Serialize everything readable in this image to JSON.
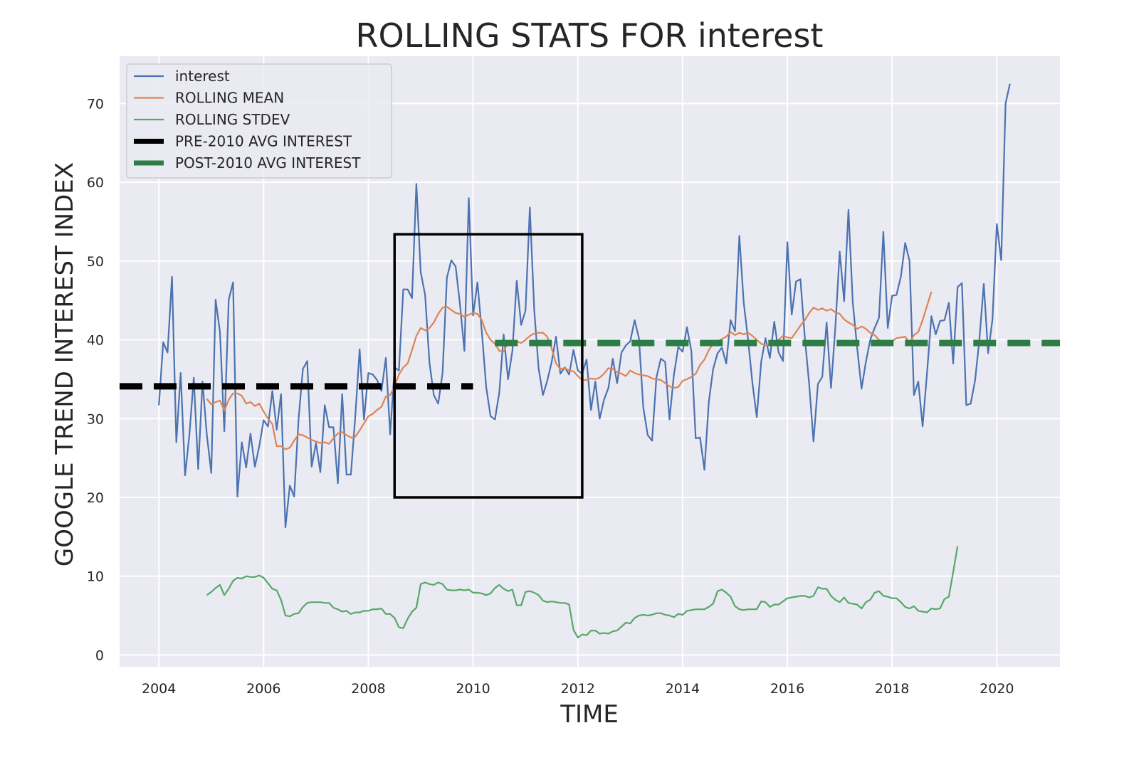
{
  "chart_data": {
    "type": "line",
    "title": "ROLLING STATS FOR interest",
    "xlabel": "TIME",
    "ylabel": "GOOGLE TREND INTEREST INDEX",
    "xlim": [
      "2003-04-01",
      "2021-03-15"
    ],
    "ylim": [
      -1.5,
      76
    ],
    "x_ticks": [
      "2004",
      "2006",
      "2008",
      "2010",
      "2012",
      "2014",
      "2016",
      "2018",
      "2020"
    ],
    "y_ticks": [
      "0",
      "10",
      "20",
      "30",
      "40",
      "50",
      "60",
      "70"
    ],
    "grid": true,
    "legend_position": "top-left",
    "colors": {
      "interest": "#4c72b0",
      "rolling_mean": "#dd8452",
      "rolling_stdev": "#55a868",
      "pre_2010_avg": "#000000",
      "post_2010_avg": "#2e7d46",
      "plot_background": "#eaeaf2",
      "grid": "#ffffff"
    },
    "series": [
      {
        "name": "interest",
        "start": "2004-01",
        "interval": "month",
        "values": [
          31.7,
          39.7,
          38.4,
          48.0,
          27.0,
          35.8,
          22.8,
          28.0,
          35.2,
          23.6,
          34.7,
          27.9,
          23.1,
          45.1,
          41.0,
          28.4,
          45.1,
          47.3,
          20.1,
          27.0,
          23.8,
          28.1,
          23.9,
          26.5,
          29.8,
          29.0,
          33.5,
          28.6,
          33.1,
          16.2,
          21.5,
          20.1,
          29.9,
          36.3,
          37.3,
          23.9,
          26.9,
          23.2,
          31.7,
          28.9,
          28.9,
          21.8,
          33.1,
          22.9,
          22.9,
          30.3,
          38.8,
          29.9,
          35.8,
          35.6,
          34.9,
          33.5,
          37.7,
          28.0,
          36.5,
          36.1,
          46.4,
          46.4,
          45.3,
          59.8,
          48.6,
          45.7,
          37.1,
          33.0,
          31.9,
          35.8,
          47.9,
          50.1,
          49.3,
          44.5,
          38.6,
          58.0,
          43.1,
          47.3,
          41.0,
          34.0,
          30.3,
          29.9,
          33.3,
          40.7,
          35.0,
          38.6,
          47.5,
          41.9,
          43.7,
          56.8,
          43.8,
          36.4,
          33.0,
          34.8,
          37.2,
          40.4,
          35.7,
          36.5,
          35.6,
          38.7,
          36.1,
          35.7,
          37.5,
          31.1,
          34.7,
          30.0,
          32.4,
          33.9,
          37.6,
          34.5,
          38.4,
          39.3,
          39.8,
          42.5,
          40.2,
          31.4,
          27.9,
          27.2,
          35.2,
          37.6,
          37.2,
          29.9,
          35.5,
          39.1,
          38.5,
          41.6,
          38.6,
          27.5,
          27.6,
          23.5,
          32.1,
          36.3,
          38.3,
          39.0,
          37.0,
          42.5,
          41.1,
          53.2,
          44.8,
          40.0,
          34.5,
          30.2,
          37.2,
          40.2,
          37.7,
          42.3,
          38.4,
          37.3,
          52.4,
          43.2,
          47.4,
          47.7,
          40.3,
          34.4,
          27.1,
          34.4,
          35.3,
          42.2,
          33.9,
          41.6,
          51.2,
          44.9,
          56.5,
          44.7,
          39.0,
          33.8,
          37.2,
          40.0,
          41.5,
          42.8,
          53.7,
          41.5,
          45.6,
          45.7,
          48.0,
          52.3,
          50.0,
          33.0,
          34.7,
          29.0,
          35.7,
          43.0,
          40.7,
          42.4,
          42.5,
          44.7,
          37.0,
          46.7,
          47.2,
          31.7,
          31.9,
          34.8,
          40.0,
          47.1,
          38.3,
          42.6,
          54.7,
          50.1,
          70.0,
          72.5
        ]
      },
      {
        "name": "ROLLING MEAN",
        "start": "2004-12",
        "interval": "month",
        "values": [
          32.5,
          31.8,
          32.1,
          32.3,
          31.0,
          32.4,
          33.2,
          33.2,
          32.9,
          31.9,
          32.1,
          31.6,
          31.9,
          30.9,
          30.0,
          29.3,
          26.5,
          26.5,
          26.1,
          26.3,
          27.2,
          28.0,
          27.9,
          27.6,
          27.3,
          27.1,
          26.9,
          27.0,
          26.8,
          27.5,
          28.1,
          28.3,
          27.9,
          27.6,
          27.7,
          28.5,
          29.4,
          30.3,
          30.6,
          31.1,
          31.5,
          32.8,
          33.0,
          34.1,
          35.6,
          36.5,
          37.0,
          38.7,
          40.5,
          41.5,
          41.2,
          41.5,
          42.2,
          43.3,
          44.1,
          44.2,
          43.8,
          43.4,
          43.3,
          42.9,
          43.2,
          43.4,
          43.3,
          42.5,
          40.9,
          40.0,
          39.5,
          38.6,
          38.5,
          39.7,
          39.9,
          39.8,
          39.6,
          40.0,
          40.5,
          40.8,
          40.9,
          40.9,
          40.4,
          38.9,
          37.0,
          36.3,
          36.4,
          36.1,
          36.0,
          35.4,
          34.9,
          34.9,
          35.1,
          35.0,
          35.2,
          35.7,
          36.4,
          36.3,
          35.9,
          35.7,
          35.4,
          36.1,
          35.8,
          35.6,
          35.5,
          35.4,
          35.1,
          35.0,
          34.9,
          34.5,
          34.1,
          33.9,
          34.0,
          34.8,
          35.0,
          35.3,
          35.7,
          36.8,
          37.5,
          38.7,
          39.5,
          39.8,
          40.1,
          40.4,
          41.0,
          40.6,
          40.9,
          40.7,
          40.9,
          40.5,
          40.0,
          39.5,
          39.3,
          39.3,
          39.5,
          40.0,
          40.5,
          40.3,
          40.2,
          41.0,
          41.8,
          42.5,
          43.4,
          44.1,
          43.8,
          44.0,
          43.7,
          43.9,
          43.5,
          43.3,
          42.6,
          42.2,
          41.9,
          41.4,
          41.7,
          41.4,
          40.9,
          40.6,
          40.0,
          39.8,
          39.4,
          39.8,
          40.2,
          40.3,
          40.4,
          39.6,
          40.6,
          41.0,
          42.5,
          44.3,
          46.1
        ]
      },
      {
        "name": "ROLLING STDEV",
        "start": "2004-12",
        "interval": "month",
        "values": [
          7.6,
          8.0,
          8.5,
          8.9,
          7.6,
          8.4,
          9.4,
          9.8,
          9.7,
          10.0,
          9.9,
          9.9,
          10.1,
          9.8,
          9.1,
          8.4,
          8.2,
          7.0,
          5.0,
          4.9,
          5.2,
          5.3,
          6.1,
          6.6,
          6.7,
          6.7,
          6.7,
          6.6,
          6.6,
          6.0,
          5.8,
          5.5,
          5.6,
          5.2,
          5.4,
          5.4,
          5.6,
          5.6,
          5.8,
          5.8,
          5.9,
          5.2,
          5.2,
          4.7,
          3.5,
          3.4,
          4.6,
          5.5,
          6.0,
          9.0,
          9.2,
          9.0,
          8.9,
          9.2,
          9.0,
          8.3,
          8.2,
          8.2,
          8.3,
          8.2,
          8.3,
          7.9,
          7.9,
          7.8,
          7.6,
          7.8,
          8.5,
          8.9,
          8.4,
          8.1,
          8.3,
          6.3,
          6.3,
          8.0,
          8.1,
          7.9,
          7.6,
          6.9,
          6.7,
          6.8,
          6.7,
          6.6,
          6.6,
          6.4,
          3.2,
          2.2,
          2.6,
          2.5,
          3.1,
          3.1,
          2.7,
          2.8,
          2.7,
          3.0,
          3.1,
          3.6,
          4.1,
          4.0,
          4.7,
          5.0,
          5.1,
          5.0,
          5.1,
          5.3,
          5.3,
          5.1,
          5.0,
          4.8,
          5.2,
          5.1,
          5.6,
          5.7,
          5.8,
          5.8,
          5.8,
          6.1,
          6.5,
          8.1,
          8.3,
          7.9,
          7.4,
          6.2,
          5.8,
          5.7,
          5.8,
          5.8,
          5.8,
          6.8,
          6.7,
          6.1,
          6.4,
          6.4,
          6.8,
          7.2,
          7.3,
          7.4,
          7.5,
          7.5,
          7.3,
          7.5,
          8.6,
          8.4,
          8.4,
          7.5,
          7.0,
          6.7,
          7.3,
          6.6,
          6.5,
          6.4,
          5.9,
          6.7,
          7.0,
          7.9,
          8.1,
          7.5,
          7.4,
          7.2,
          7.2,
          6.7,
          6.1,
          5.9,
          6.2,
          5.6,
          5.5,
          5.4,
          5.9,
          5.8,
          5.9,
          7.1,
          7.4,
          10.5,
          13.8
        ]
      },
      {
        "name": "PRE-2010 AVG INTEREST",
        "x": [
          "2003-04-01",
          "2010-01-01"
        ],
        "values": [
          34.1,
          34.1
        ]
      },
      {
        "name": "POST-2010 AVG INTEREST",
        "x": [
          "2010-06-01",
          "2021-03-15"
        ],
        "values": [
          39.6,
          39.6
        ]
      }
    ],
    "annotation_box": {
      "x": [
        "2008-07-01",
        "2012-02-01"
      ],
      "y": [
        20,
        53.4
      ]
    }
  }
}
